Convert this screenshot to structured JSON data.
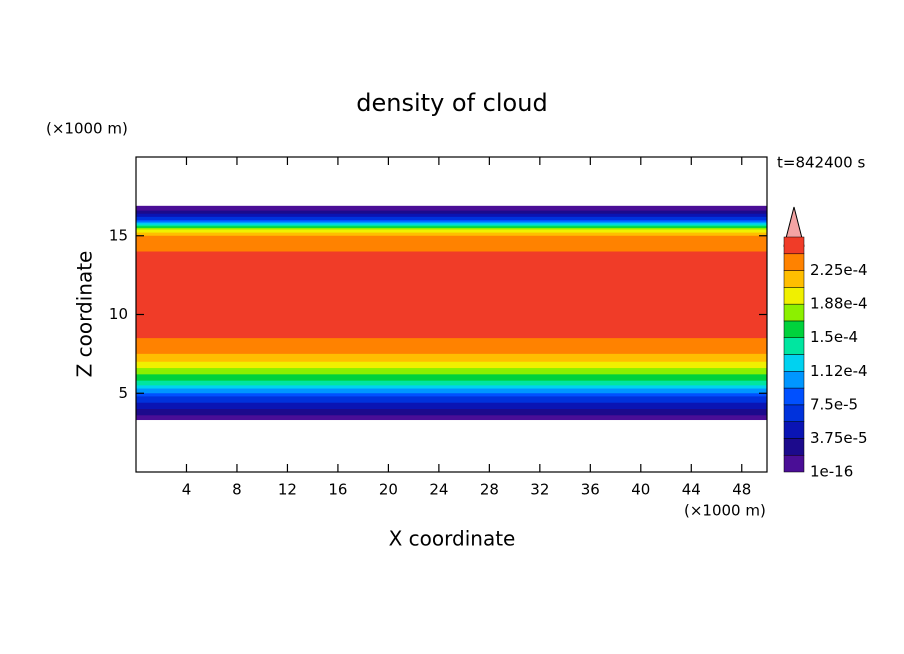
{
  "chart_data": {
    "type": "contour",
    "title": "density of cloud",
    "x_label": "X coordinate",
    "y_label": "Z coordinate",
    "x_unit": "(×1000 m)",
    "y_unit": "(×1000 m)",
    "annotation": "t=842400 s",
    "xlim": [
      0,
      50
    ],
    "xticks": [
      4,
      8,
      12,
      16,
      20,
      24,
      28,
      32,
      36,
      40,
      44,
      48
    ],
    "ylim": [
      0,
      20
    ],
    "yticks": [
      5,
      10,
      15
    ],
    "contours": [
      {
        "level": 0,
        "color": "#4a0e96",
        "z": [
          3.3,
          16.9
        ]
      },
      {
        "level": 1.875e-05,
        "color": "#1c0a8c",
        "z": [
          3.6,
          16.6
        ]
      },
      {
        "level": 3.75e-05,
        "color": "#0a14b4",
        "z": [
          4.0,
          16.4
        ]
      },
      {
        "level": 5.625e-05,
        "color": "#0032dc",
        "z": [
          4.4,
          16.2
        ]
      },
      {
        "level": 7.5e-05,
        "color": "#0050ff",
        "z": [
          4.8,
          16.0
        ]
      },
      {
        "level": 9.375e-05,
        "color": "#0096ff",
        "z": [
          5.0,
          15.9
        ]
      },
      {
        "level": 0.0001125,
        "color": "#00d2f0",
        "z": [
          5.3,
          15.8
        ]
      },
      {
        "level": 0.00013125,
        "color": "#00e6a0",
        "z": [
          5.5,
          15.7
        ]
      },
      {
        "level": 0.00015,
        "color": "#00d23c",
        "z": [
          5.8,
          15.6
        ]
      },
      {
        "level": 0.00016875,
        "color": "#8cf000",
        "z": [
          6.2,
          15.5
        ]
      },
      {
        "level": 0.0001875,
        "color": "#f0f000",
        "z": [
          6.6,
          15.4
        ]
      },
      {
        "level": 0.00020625,
        "color": "#ffbe00",
        "z": [
          7.0,
          15.2
        ]
      },
      {
        "level": 0.000225,
        "color": "#ff8200",
        "z": [
          7.5,
          15.0
        ]
      },
      {
        "level": 0.00024375,
        "color": "#f03c28",
        "z": [
          8.5,
          14.0
        ]
      }
    ],
    "clim": [
      0,
      0.0002625
    ],
    "cticks": [
      {
        "value": 1e-16,
        "label": "1e-16"
      },
      {
        "value": 3.75e-05,
        "label": "3.75e-5"
      },
      {
        "value": 7.5e-05,
        "label": "7.5e-5"
      },
      {
        "value": 0.0001125,
        "label": "1.12e-4"
      },
      {
        "value": 0.00015,
        "label": "1.5e-4"
      },
      {
        "value": 0.0001875,
        "label": "1.88e-4"
      },
      {
        "value": 0.000225,
        "label": "2.25e-4"
      }
    ]
  }
}
